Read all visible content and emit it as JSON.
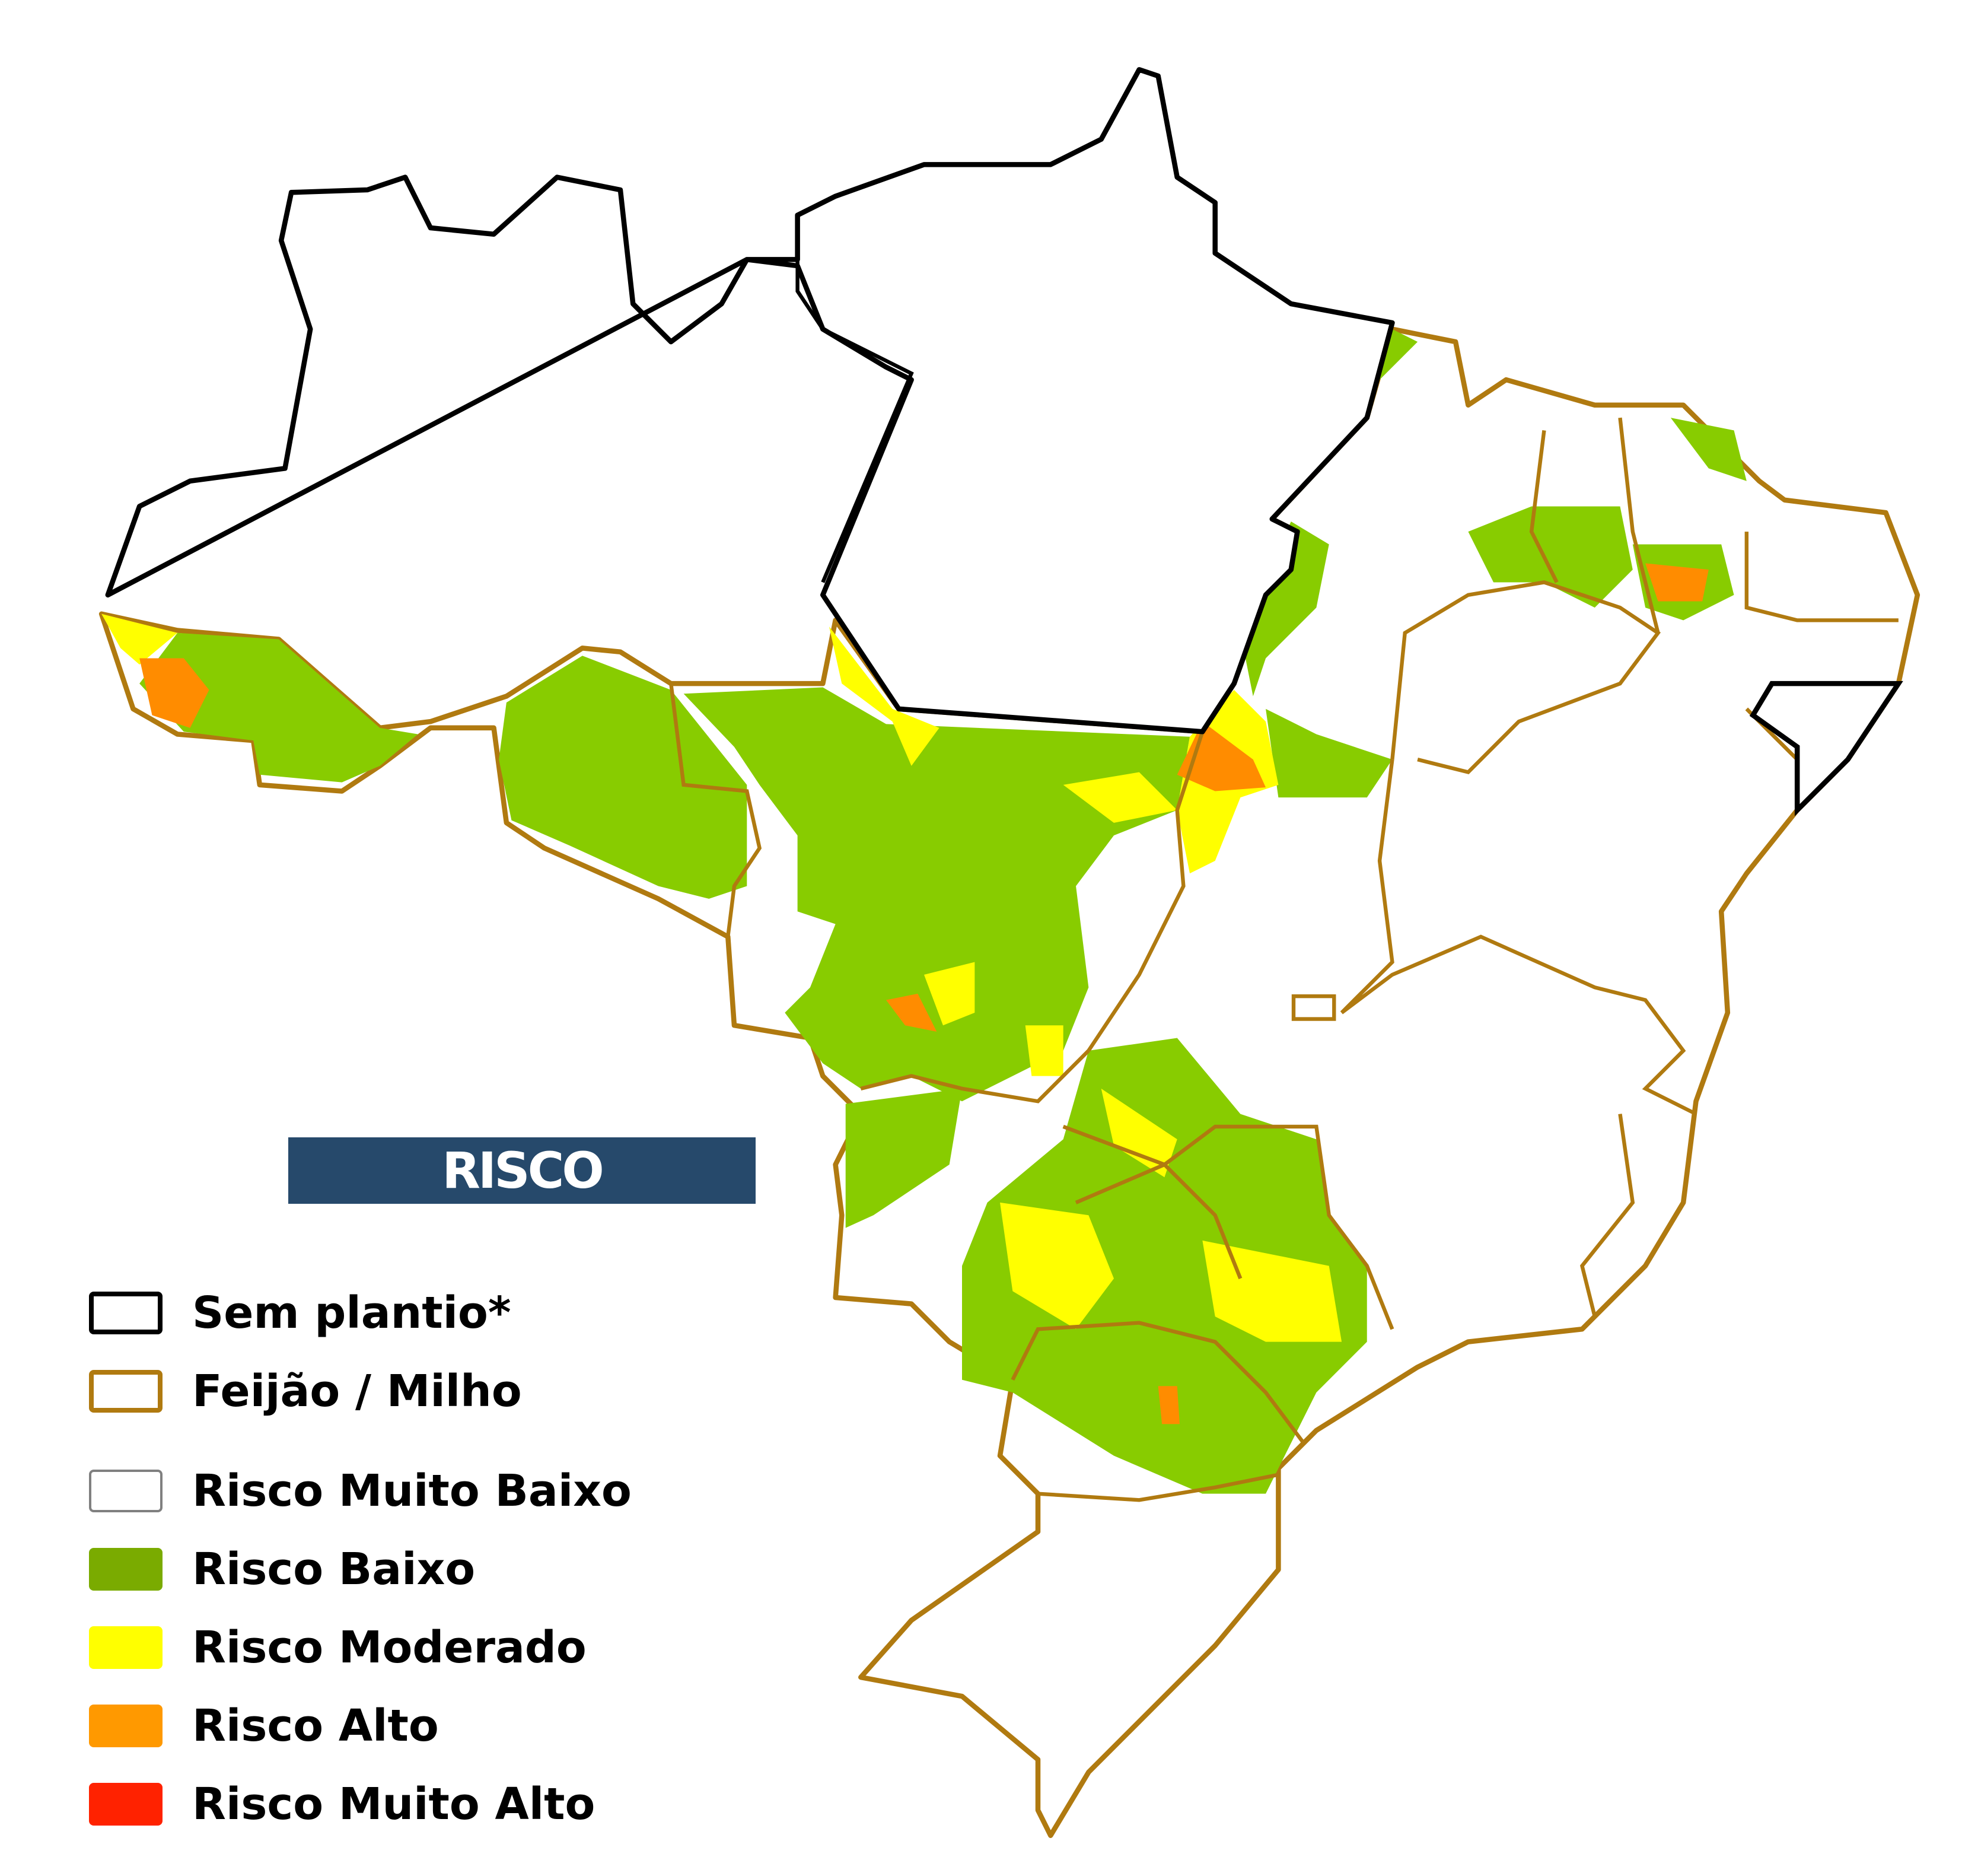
{
  "title": "RISCO",
  "colors": {
    "sem_plantio_border": "#000000",
    "crop_border": "#b07a10",
    "muito_baixo": "#ffffff",
    "baixo": "#88cc00",
    "moderado": "#ffff00",
    "alto": "#ff8c00",
    "muito_alto": "#ff2200",
    "title_bg": "#26496b"
  },
  "legend": {
    "borders": [
      {
        "label": "Sem plantio*",
        "color": "#000000"
      },
      {
        "label": "Feijão / Milho",
        "color": "#b07a10"
      }
    ],
    "classes": [
      {
        "label": "Risco Muito Baixo",
        "color": "#ffffff",
        "border": "#808080"
      },
      {
        "label": "Risco Baixo",
        "color": "#7aab00"
      },
      {
        "label": "Risco Moderado",
        "color": "#ffff00"
      },
      {
        "label": "Risco Alto",
        "color": "#ff9900"
      },
      {
        "label": "Risco Muito Alto",
        "color": "#ff2200"
      }
    ]
  }
}
